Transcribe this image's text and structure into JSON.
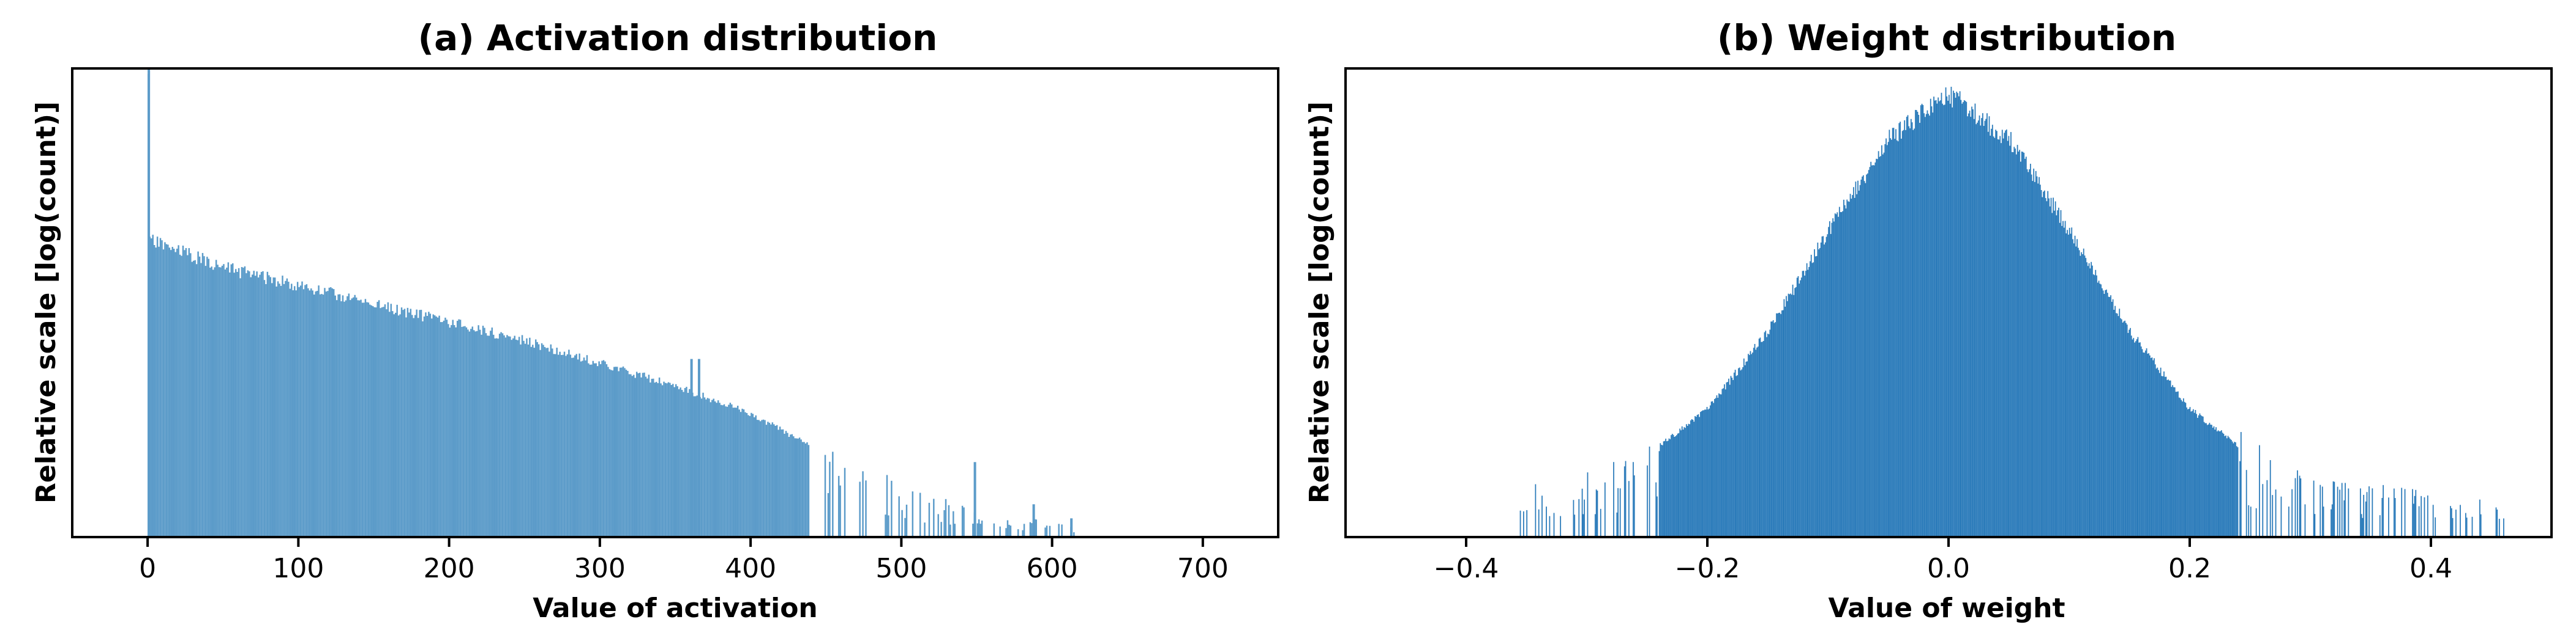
{
  "chart_data": [
    {
      "type": "histogram",
      "title": "(a) Activation distribution",
      "xlabel": "Value of activation",
      "ylabel": "Relative scale [log(count)]",
      "xlim": [
        -50,
        750
      ],
      "yscale": "log",
      "yticks_shown": false,
      "xticks": [
        0,
        100,
        200,
        300,
        400,
        500,
        600,
        700
      ],
      "xtick_labels": [
        "0",
        "100",
        "200",
        "300",
        "400",
        "500",
        "600",
        "700"
      ],
      "bar_color": "#5b9bc9",
      "data_range": [
        0,
        615
      ],
      "relative_log_height_profile": {
        "x": [
          0,
          1,
          50,
          100,
          150,
          200,
          250,
          300,
          350,
          400,
          450,
          500,
          550,
          600,
          615
        ],
        "y": [
          1.0,
          0.65,
          0.59,
          0.55,
          0.51,
          0.47,
          0.43,
          0.38,
          0.33,
          0.27,
          0.18,
          0.1,
          0.05,
          0.03,
          0.02
        ]
      },
      "spikes": [
        {
          "x": 0,
          "y": 1.0
        },
        {
          "x": 360,
          "y": 0.38
        },
        {
          "x": 365,
          "y": 0.38
        },
        {
          "x": 548,
          "y": 0.16
        },
        {
          "x": 587,
          "y": 0.07
        },
        {
          "x": 612,
          "y": 0.04
        }
      ]
    },
    {
      "type": "histogram",
      "title": "(b) Weight distribution",
      "xlabel": "Value of weight",
      "ylabel": "Relative scale [log(count)]",
      "xlim": [
        -0.5,
        0.5
      ],
      "yscale": "log",
      "yticks_shown": false,
      "xticks": [
        -0.4,
        -0.2,
        0.0,
        0.2,
        0.4
      ],
      "xtick_labels": [
        "−0.4",
        "−0.2",
        "0.0",
        "0.2",
        "0.4"
      ],
      "bar_color": "#2b7bba",
      "data_range": [
        -0.36,
        0.46
      ],
      "relative_log_height_profile": {
        "x": [
          -0.36,
          -0.3,
          -0.25,
          -0.2,
          -0.15,
          -0.1,
          -0.05,
          0.0,
          0.05,
          0.1,
          0.15,
          0.2,
          0.25,
          0.3,
          0.35,
          0.46
        ],
        "y": [
          0.1,
          0.12,
          0.18,
          0.28,
          0.45,
          0.67,
          0.87,
          0.97,
          0.87,
          0.67,
          0.45,
          0.28,
          0.18,
          0.12,
          0.1,
          0.08
        ]
      }
    }
  ]
}
